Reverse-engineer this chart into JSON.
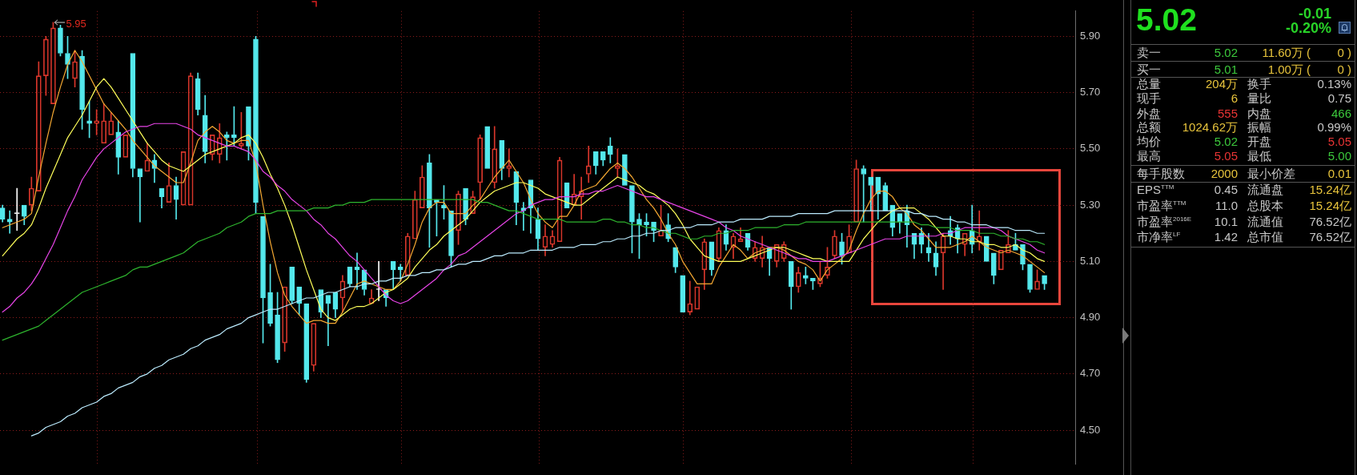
{
  "chart_data": [
    {
      "type": "candlestick",
      "categories": [
        null,
        null,
        null,
        null,
        null,
        null,
        null,
        null,
        null,
        null,
        null,
        null,
        null,
        null,
        null,
        null,
        null,
        null,
        null,
        null,
        null,
        null,
        null,
        null,
        null,
        null,
        null,
        null,
        null,
        null,
        null,
        null,
        null,
        null,
        null,
        null,
        null,
        null,
        null,
        null,
        null,
        null,
        null,
        null,
        null,
        null,
        null,
        null,
        null,
        null,
        null,
        null,
        null,
        null,
        null,
        null,
        null,
        null,
        null,
        null,
        null,
        null,
        null,
        null,
        null,
        null,
        null,
        null,
        null,
        null,
        null,
        null,
        null,
        null,
        null,
        null,
        null,
        null,
        null,
        null,
        null,
        null,
        null,
        null,
        null,
        null,
        null,
        null,
        null,
        null,
        null,
        null,
        null,
        null,
        null,
        null,
        null,
        null,
        null,
        null,
        null,
        null,
        null,
        null,
        null,
        null,
        null,
        null,
        null,
        null,
        null,
        null,
        null,
        null,
        null,
        null,
        null,
        null,
        null,
        null,
        null,
        null,
        null,
        null,
        null,
        null,
        null,
        null,
        null,
        null,
        null,
        null,
        null,
        null,
        null,
        null,
        null,
        null,
        null,
        null,
        null,
        null,
        null,
        null,
        null
      ],
      "ohlc": [
        [
          5.29,
          5.3,
          5.24,
          5.25
        ],
        [
          5.25,
          5.28,
          5.2,
          5.24
        ],
        [
          5.27,
          5.36,
          5.21,
          5.27
        ],
        [
          5.3,
          5.3,
          5.23,
          5.26
        ],
        [
          5.3,
          5.4,
          5.28,
          5.36
        ],
        [
          5.35,
          5.81,
          5.35,
          5.76
        ],
        [
          5.76,
          5.9,
          5.69,
          5.89
        ],
        [
          5.66,
          5.95,
          5.66,
          5.93
        ],
        [
          5.93,
          5.94,
          5.83,
          5.84
        ],
        [
          5.84,
          5.9,
          5.75,
          5.8
        ],
        [
          5.75,
          5.85,
          5.72,
          5.81
        ],
        [
          5.83,
          5.85,
          5.57,
          5.64
        ],
        [
          5.6,
          5.67,
          5.54,
          5.59
        ],
        [
          5.59,
          5.64,
          5.55,
          5.6
        ],
        [
          5.52,
          5.66,
          5.52,
          5.6
        ],
        [
          5.55,
          5.63,
          5.55,
          5.6
        ],
        [
          5.56,
          5.6,
          5.41,
          5.47
        ],
        [
          5.47,
          5.55,
          5.47,
          5.55
        ],
        [
          5.84,
          5.84,
          5.4,
          5.43
        ],
        [
          5.43,
          5.43,
          5.24,
          5.4
        ],
        [
          5.42,
          5.52,
          5.42,
          5.46
        ],
        [
          5.46,
          5.48,
          5.38,
          5.43
        ],
        [
          5.36,
          5.36,
          5.29,
          5.33
        ],
        [
          5.31,
          5.45,
          5.31,
          5.37
        ],
        [
          5.37,
          5.4,
          5.25,
          5.32
        ],
        [
          5.3,
          5.49,
          5.3,
          5.49
        ],
        [
          5.3,
          5.77,
          5.3,
          5.76
        ],
        [
          5.75,
          5.77,
          5.62,
          5.64
        ],
        [
          5.62,
          5.69,
          5.45,
          5.49
        ],
        [
          5.48,
          5.55,
          5.46,
          5.55
        ],
        [
          5.48,
          5.59,
          5.45,
          5.54
        ],
        [
          5.55,
          5.56,
          5.46,
          5.54
        ],
        [
          5.55,
          5.65,
          5.51,
          5.54
        ],
        [
          5.51,
          5.63,
          5.5,
          5.52
        ],
        [
          5.65,
          5.65,
          5.46,
          5.51
        ],
        [
          5.89,
          5.9,
          5.27,
          5.31
        ],
        [
          5.26,
          5.26,
          4.81,
          4.97
        ],
        [
          4.99,
          5.09,
          4.87,
          4.88
        ],
        [
          4.91,
          4.99,
          4.74,
          4.75
        ],
        [
          4.81,
          5.01,
          4.78,
          5.01
        ],
        [
          5.08,
          5.08,
          4.95,
          4.96
        ],
        [
          5.01,
          5.01,
          4.91,
          4.95
        ],
        [
          4.95,
          4.95,
          4.67,
          4.68
        ],
        [
          4.73,
          4.88,
          4.71,
          4.88
        ],
        [
          5.0,
          5.0,
          4.9,
          4.92
        ],
        [
          4.98,
          4.98,
          4.8,
          4.95
        ],
        [
          4.99,
          4.99,
          4.9,
          4.93
        ],
        [
          4.97,
          5.05,
          4.92,
          5.03
        ],
        [
          5.08,
          5.08,
          5.01,
          5.02
        ],
        [
          5.08,
          5.13,
          5.0,
          5.07
        ],
        [
          5.07,
          5.07,
          4.98,
          5.0
        ],
        [
          4.95,
          5.0,
          4.95,
          4.97
        ],
        [
          5.0,
          5.1,
          4.96,
          5.0
        ],
        [
          5.0,
          5.0,
          4.94,
          4.97
        ],
        [
          5.1,
          5.1,
          5.0,
          5.07
        ],
        [
          5.08,
          5.09,
          5.03,
          5.07
        ],
        [
          5.05,
          5.2,
          5.05,
          5.19
        ],
        [
          5.18,
          5.35,
          5.18,
          5.32
        ],
        [
          5.29,
          5.44,
          5.29,
          5.4
        ],
        [
          5.45,
          5.48,
          5.15,
          5.29
        ],
        [
          5.32,
          5.32,
          5.19,
          5.31
        ],
        [
          5.3,
          5.37,
          5.25,
          5.29
        ],
        [
          5.28,
          5.28,
          5.08,
          5.12
        ],
        [
          5.21,
          5.35,
          5.16,
          5.34
        ],
        [
          5.36,
          5.36,
          5.23,
          5.25
        ],
        [
          5.27,
          5.35,
          5.27,
          5.33
        ],
        [
          5.38,
          5.55,
          5.32,
          5.54
        ],
        [
          5.58,
          5.58,
          5.43,
          5.43
        ],
        [
          5.38,
          5.58,
          5.36,
          5.5
        ],
        [
          5.53,
          5.53,
          5.39,
          5.43
        ],
        [
          5.43,
          5.5,
          5.4,
          5.44
        ],
        [
          5.42,
          5.42,
          5.23,
          5.31
        ],
        [
          5.29,
          5.31,
          5.21,
          5.28
        ],
        [
          5.39,
          5.39,
          5.2,
          5.29
        ],
        [
          5.25,
          5.29,
          5.14,
          5.18
        ],
        [
          5.15,
          5.23,
          5.12,
          5.19
        ],
        [
          5.16,
          5.21,
          5.15,
          5.19
        ],
        [
          5.17,
          5.47,
          5.17,
          5.46
        ],
        [
          5.38,
          5.38,
          5.29,
          5.29
        ],
        [
          5.3,
          5.41,
          5.3,
          5.34
        ],
        [
          5.33,
          5.4,
          5.25,
          5.35
        ],
        [
          5.41,
          5.51,
          5.38,
          5.44
        ],
        [
          5.49,
          5.49,
          5.41,
          5.44
        ],
        [
          5.49,
          5.49,
          5.44,
          5.46
        ],
        [
          5.51,
          5.54,
          5.45,
          5.48
        ],
        [
          5.43,
          5.5,
          5.4,
          5.44
        ],
        [
          5.48,
          5.48,
          5.37,
          5.37
        ],
        [
          5.37,
          5.37,
          5.13,
          5.24
        ],
        [
          5.25,
          5.27,
          5.11,
          5.23
        ],
        [
          5.24,
          5.27,
          5.19,
          5.23
        ],
        [
          5.24,
          5.24,
          5.17,
          5.21
        ],
        [
          5.19,
          5.3,
          5.19,
          5.21
        ],
        [
          5.23,
          5.27,
          5.17,
          5.18
        ],
        [
          5.15,
          5.15,
          5.06,
          5.08
        ],
        [
          5.05,
          5.05,
          4.92,
          4.92
        ],
        [
          4.92,
          5.03,
          4.91,
          4.95
        ],
        [
          4.93,
          5.01,
          4.93,
          5.01
        ],
        [
          5.07,
          5.18,
          5.0,
          5.17
        ],
        [
          5.17,
          5.17,
          5.05,
          5.07
        ],
        [
          5.11,
          5.22,
          5.1,
          5.21
        ],
        [
          5.21,
          5.23,
          5.14,
          5.16
        ],
        [
          5.15,
          5.2,
          5.11,
          5.19
        ],
        [
          5.17,
          5.22,
          5.17,
          5.18
        ],
        [
          5.2,
          5.2,
          5.14,
          5.15
        ],
        [
          5.11,
          5.17,
          5.1,
          5.15
        ],
        [
          5.11,
          5.19,
          5.08,
          5.15
        ],
        [
          5.15,
          5.15,
          5.05,
          5.11
        ],
        [
          5.1,
          5.16,
          5.08,
          5.16
        ],
        [
          5.11,
          5.17,
          5.1,
          5.16
        ],
        [
          5.1,
          5.1,
          4.93,
          5.01
        ],
        [
          5.01,
          5.08,
          4.99,
          5.06
        ],
        [
          5.05,
          5.08,
          5.02,
          5.04
        ],
        [
          5.04,
          5.04,
          5.0,
          5.03
        ],
        [
          5.02,
          5.1,
          5.01,
          5.04
        ],
        [
          5.05,
          5.15,
          5.04,
          5.08
        ],
        [
          5.12,
          5.21,
          5.11,
          5.19
        ],
        [
          5.17,
          5.2,
          5.09,
          5.12
        ],
        [
          5.13,
          5.23,
          5.13,
          5.19
        ],
        [
          5.24,
          5.46,
          5.24,
          5.43
        ],
        [
          5.43,
          5.44,
          5.24,
          5.41
        ],
        [
          5.4,
          5.4,
          5.28,
          5.37
        ],
        [
          5.4,
          5.4,
          5.25,
          5.34
        ],
        [
          5.37,
          5.38,
          5.28,
          5.28
        ],
        [
          5.3,
          5.3,
          5.19,
          5.22
        ],
        [
          5.27,
          5.27,
          5.2,
          5.24
        ],
        [
          5.28,
          5.3,
          5.15,
          5.23
        ],
        [
          5.2,
          5.2,
          5.11,
          5.16
        ],
        [
          5.2,
          5.22,
          5.13,
          5.16
        ],
        [
          5.15,
          5.2,
          5.1,
          5.13
        ],
        [
          5.13,
          5.17,
          5.05,
          5.08
        ],
        [
          5.13,
          5.2,
          5.0,
          5.19
        ],
        [
          5.21,
          5.26,
          5.16,
          5.19
        ],
        [
          5.22,
          5.23,
          5.13,
          5.18
        ],
        [
          5.16,
          5.2,
          5.12,
          5.2
        ],
        [
          5.21,
          5.3,
          5.13,
          5.16
        ],
        [
          5.17,
          5.28,
          5.14,
          5.19
        ],
        [
          5.19,
          5.19,
          5.1,
          5.1
        ],
        [
          5.13,
          5.13,
          5.02,
          5.05
        ],
        [
          5.07,
          5.14,
          5.07,
          5.14
        ],
        [
          5.13,
          5.21,
          5.13,
          5.16
        ],
        [
          5.16,
          5.2,
          5.14,
          5.14
        ],
        [
          5.16,
          5.16,
          5.07,
          5.09
        ],
        [
          5.09,
          5.09,
          4.99,
          5.0
        ],
        [
          5.0,
          5.07,
          5.0,
          5.03
        ],
        [
          5.05,
          5.05,
          5.0,
          5.02
        ]
      ],
      "colors": [
        "#54e8ec",
        "#54e8ec",
        "#ffffff",
        "#54e8ec",
        "#d9362b",
        "#d9362b",
        "#d9362b",
        "#d9362b",
        "#54e8ec",
        "#54e8ec",
        "#d9362b",
        "#54e8ec",
        "#54e8ec",
        "#d9362b",
        "#d9362b",
        "#d9362b",
        "#54e8ec",
        "#d9362b",
        "#54e8ec",
        "#54e8ec",
        "#d9362b",
        "#54e8ec",
        "#54e8ec",
        "#d9362b",
        "#54e8ec",
        "#d9362b",
        "#d9362b",
        "#54e8ec",
        "#54e8ec",
        "#d9362b",
        "#d9362b",
        "#54e8ec",
        "#54e8ec",
        "#d9362b",
        "#54e8ec",
        "#54e8ec",
        "#54e8ec",
        "#54e8ec",
        "#54e8ec",
        "#d9362b",
        "#54e8ec",
        "#54e8ec",
        "#54e8ec",
        "#d9362b",
        "#54e8ec",
        "#54e8ec",
        "#54e8ec",
        "#d9362b",
        "#54e8ec",
        "#54e8ec",
        "#54e8ec",
        "#d9362b",
        "#ffffff",
        "#54e8ec",
        "#54e8ec",
        "#54e8ec",
        "#d9362b",
        "#d9362b",
        "#d9362b",
        "#54e8ec",
        "#54e8ec",
        "#54e8ec",
        "#54e8ec",
        "#d9362b",
        "#54e8ec",
        "#d9362b",
        "#d9362b",
        "#54e8ec",
        "#d9362b",
        "#54e8ec",
        "#d9362b",
        "#54e8ec",
        "#54e8ec",
        "#54e8ec",
        "#54e8ec",
        "#d9362b",
        "#d9362b",
        "#d9362b",
        "#54e8ec",
        "#d9362b",
        "#d9362b",
        "#d9362b",
        "#54e8ec",
        "#54e8ec",
        "#54e8ec",
        "#d9362b",
        "#54e8ec",
        "#54e8ec",
        "#54e8ec",
        "#54e8ec",
        "#54e8ec",
        "#d9362b",
        "#54e8ec",
        "#54e8ec",
        "#54e8ec",
        "#d9362b",
        "#d9362b",
        "#d9362b",
        "#54e8ec",
        "#d9362b",
        "#54e8ec",
        "#d9362b",
        "#d9362b",
        "#54e8ec",
        "#d9362b",
        "#d9362b",
        "#54e8ec",
        "#d9362b",
        "#d9362b",
        "#54e8ec",
        "#d9362b",
        "#54e8ec",
        "#54e8ec",
        "#d9362b",
        "#d9362b",
        "#d9362b",
        "#54e8ec",
        "#d9362b",
        "#d9362b",
        "#54e8ec",
        "#54e8ec",
        "#54e8ec",
        "#54e8ec",
        "#54e8ec",
        "#54e8ec",
        "#54e8ec",
        "#54e8ec",
        "#54e8ec",
        "#54e8ec",
        "#54e8ec",
        "#d9362b",
        "#54e8ec",
        "#54e8ec",
        "#d9362b",
        "#54e8ec",
        "#d9362b",
        "#54e8ec",
        "#54e8ec",
        "#d9362b",
        "#d9362b",
        "#54e8ec",
        "#54e8ec",
        "#54e8ec",
        "#d9362b",
        "#54e8ec"
      ],
      "series": [
        {
          "type": "line",
          "color": "#bcecff",
          "values": [
            null,
            null,
            null,
            null,
            4.48,
            4.49,
            4.51,
            4.52,
            4.53,
            4.55,
            4.56,
            4.58,
            4.59,
            4.6,
            4.62,
            4.63,
            4.65,
            4.66,
            4.67,
            4.69,
            4.7,
            4.72,
            4.73,
            4.75,
            4.76,
            4.77,
            4.79,
            4.8,
            4.82,
            4.83,
            4.84,
            4.86,
            4.87,
            4.88,
            4.9,
            4.91,
            4.92,
            4.93,
            4.93,
            4.94,
            4.95,
            4.96,
            4.97,
            4.97,
            4.98,
            4.99,
            4.99,
            5.0,
            5.01,
            5.01,
            5.02,
            5.02,
            5.03,
            5.03,
            5.04,
            5.04,
            5.05,
            5.05,
            5.06,
            5.06,
            5.07,
            5.07,
            5.08,
            5.09,
            5.09,
            5.1,
            5.1,
            5.11,
            5.12,
            5.12,
            5.13,
            5.13,
            5.13,
            5.14,
            5.14,
            5.14,
            5.14,
            5.15,
            5.15,
            5.15,
            5.16,
            5.16,
            5.16,
            5.17,
            5.17,
            5.18,
            5.18,
            5.19,
            5.19,
            5.2,
            5.2,
            5.21,
            5.21,
            5.22,
            5.22,
            5.22,
            5.23,
            5.23,
            5.23,
            5.24,
            5.24,
            5.24,
            5.25,
            5.25,
            5.25,
            5.25,
            5.26,
            5.26,
            5.26,
            5.26,
            5.27,
            5.27,
            5.27,
            5.27,
            5.27,
            5.28,
            5.28,
            5.28,
            5.28,
            5.28,
            5.28,
            5.28,
            5.28,
            5.28,
            5.28,
            5.28,
            5.27,
            5.27,
            5.26,
            5.26,
            5.25,
            5.25,
            5.24,
            5.24,
            5.23,
            5.23,
            5.23,
            5.22,
            5.22,
            5.22,
            5.21,
            5.21,
            5.21,
            5.2,
            5.2
          ]
        },
        {
          "type": "line",
          "color": "#2eb42e",
          "values": [
            4.82,
            4.83,
            4.84,
            4.85,
            4.86,
            4.87,
            4.89,
            4.91,
            4.93,
            4.95,
            4.97,
            4.99,
            5.0,
            5.01,
            5.02,
            5.03,
            5.04,
            5.05,
            5.07,
            5.08,
            5.08,
            5.09,
            5.1,
            5.11,
            5.12,
            5.13,
            5.15,
            5.17,
            5.18,
            5.19,
            5.2,
            5.22,
            5.23,
            5.24,
            5.26,
            5.27,
            5.27,
            5.27,
            5.28,
            5.28,
            5.28,
            5.28,
            5.28,
            5.29,
            5.29,
            5.29,
            5.3,
            5.3,
            5.31,
            5.31,
            5.31,
            5.32,
            5.32,
            5.32,
            5.32,
            5.32,
            5.32,
            5.32,
            5.32,
            5.32,
            5.32,
            5.32,
            5.32,
            5.32,
            5.32,
            5.32,
            5.31,
            5.31,
            5.3,
            5.29,
            5.28,
            5.28,
            5.27,
            5.26,
            5.25,
            5.25,
            5.25,
            5.25,
            5.24,
            5.24,
            5.24,
            5.24,
            5.24,
            5.25,
            5.25,
            5.24,
            5.24,
            5.23,
            5.23,
            5.22,
            5.22,
            5.21,
            5.2,
            5.2,
            5.19,
            5.18,
            5.18,
            5.19,
            5.19,
            5.2,
            5.2,
            5.21,
            5.21,
            5.21,
            5.22,
            5.22,
            5.22,
            5.22,
            5.23,
            5.23,
            5.23,
            5.24,
            5.24,
            5.24,
            5.24,
            5.24,
            5.24,
            5.24,
            5.24,
            5.24,
            5.24,
            5.24,
            5.24,
            5.24,
            5.24,
            5.24,
            5.24,
            5.23,
            5.23,
            5.22,
            5.22,
            5.22,
            5.21,
            5.21,
            5.21,
            5.2,
            5.2,
            5.2,
            5.19,
            5.19,
            5.18,
            5.18,
            5.17,
            5.17,
            5.16
          ]
        },
        {
          "type": "line",
          "color": "#e844e8",
          "values": [
            4.92,
            4.94,
            4.97,
            4.99,
            5.02,
            5.06,
            5.11,
            5.16,
            5.22,
            5.28,
            5.33,
            5.39,
            5.43,
            5.47,
            5.5,
            5.52,
            5.54,
            5.56,
            5.57,
            5.58,
            5.58,
            5.59,
            5.59,
            5.59,
            5.59,
            5.58,
            5.57,
            5.55,
            5.54,
            5.53,
            5.52,
            5.51,
            5.51,
            5.5,
            5.49,
            5.46,
            5.42,
            5.4,
            5.37,
            5.35,
            5.32,
            5.3,
            5.28,
            5.25,
            5.23,
            5.2,
            5.18,
            5.15,
            5.12,
            5.1,
            5.07,
            5.04,
            5.01,
            4.98,
            4.96,
            4.95,
            4.96,
            4.98,
            5.0,
            5.02,
            5.04,
            5.07,
            5.09,
            5.12,
            5.13,
            5.15,
            5.17,
            5.19,
            5.21,
            5.23,
            5.25,
            5.27,
            5.28,
            5.3,
            5.31,
            5.32,
            5.32,
            5.33,
            5.33,
            5.33,
            5.34,
            5.34,
            5.35,
            5.35,
            5.36,
            5.37,
            5.36,
            5.35,
            5.34,
            5.33,
            5.33,
            5.32,
            5.31,
            5.3,
            5.29,
            5.28,
            5.27,
            5.26,
            5.25,
            5.24,
            5.22,
            5.21,
            5.19,
            5.18,
            5.17,
            5.16,
            5.15,
            5.14,
            5.13,
            5.12,
            5.11,
            5.11,
            5.1,
            5.1,
            5.1,
            5.11,
            5.12,
            5.13,
            5.14,
            5.15,
            5.16,
            5.17,
            5.18,
            5.18,
            5.18,
            5.19,
            5.19,
            5.19,
            5.19,
            5.19,
            5.2,
            5.2,
            5.21,
            5.22,
            5.22,
            5.22,
            5.22,
            5.22,
            5.21,
            5.19,
            5.18,
            5.17,
            5.16,
            5.14,
            5.13
          ]
        },
        {
          "type": "line",
          "color": "#ffff5a",
          "values": [
            5.12,
            5.15,
            5.18,
            5.2,
            5.23,
            5.29,
            5.36,
            5.42,
            5.48,
            5.54,
            5.58,
            5.62,
            5.67,
            5.72,
            5.75,
            5.72,
            5.68,
            5.64,
            5.6,
            5.56,
            5.52,
            5.49,
            5.46,
            5.44,
            5.43,
            5.42,
            5.44,
            5.46,
            5.48,
            5.49,
            5.5,
            5.51,
            5.52,
            5.54,
            5.55,
            5.52,
            5.47,
            5.41,
            5.36,
            5.3,
            5.23,
            5.15,
            5.07,
            5.0,
            4.93,
            4.9,
            4.89,
            4.91,
            4.93,
            4.94,
            4.94,
            4.95,
            4.97,
            4.99,
            5.0,
            5.02,
            5.04,
            5.08,
            5.11,
            5.14,
            5.16,
            5.19,
            5.21,
            5.23,
            5.25,
            5.28,
            5.31,
            5.33,
            5.35,
            5.36,
            5.37,
            5.38,
            5.38,
            5.37,
            5.36,
            5.34,
            5.33,
            5.32,
            5.31,
            5.3,
            5.3,
            5.32,
            5.34,
            5.36,
            5.38,
            5.4,
            5.39,
            5.38,
            5.37,
            5.35,
            5.34,
            5.32,
            5.3,
            5.27,
            5.23,
            5.18,
            5.15,
            5.12,
            5.11,
            5.1,
            5.1,
            5.1,
            5.1,
            5.11,
            5.12,
            5.13,
            5.14,
            5.15,
            5.15,
            5.14,
            5.13,
            5.12,
            5.11,
            5.11,
            5.1,
            5.1,
            5.1,
            5.1,
            5.14,
            5.18,
            5.21,
            5.24,
            5.26,
            5.28,
            5.29,
            5.29,
            5.29,
            5.27,
            5.25,
            5.22,
            5.19,
            5.19,
            5.18,
            5.18,
            5.17,
            5.17,
            5.16,
            5.16,
            5.15,
            5.15,
            5.16,
            5.14,
            5.13,
            5.11,
            5.1
          ]
        },
        {
          "type": "line",
          "color": "#f5a832",
          "values": [
            5.22,
            5.23,
            5.24,
            5.25,
            5.27,
            5.4,
            5.52,
            5.63,
            5.72,
            5.8,
            5.85,
            5.81,
            5.76,
            5.71,
            5.66,
            5.63,
            5.6,
            5.57,
            5.53,
            5.5,
            5.47,
            5.44,
            5.42,
            5.4,
            5.38,
            5.38,
            5.45,
            5.53,
            5.56,
            5.58,
            5.56,
            5.53,
            5.52,
            5.53,
            5.53,
            5.45,
            5.3,
            5.17,
            5.06,
            4.98,
            4.94,
            4.91,
            4.88,
            4.89,
            4.89,
            4.88,
            4.88,
            4.92,
            4.97,
            5.02,
            5.03,
            5.02,
            5.01,
            5.0,
            5.0,
            5.03,
            5.09,
            5.16,
            5.24,
            5.29,
            5.31,
            5.31,
            5.27,
            5.27,
            5.27,
            5.3,
            5.32,
            5.36,
            5.4,
            5.43,
            5.46,
            5.42,
            5.38,
            5.32,
            5.27,
            5.24,
            5.22,
            5.26,
            5.26,
            5.3,
            5.35,
            5.36,
            5.37,
            5.4,
            5.43,
            5.45,
            5.43,
            5.4,
            5.36,
            5.32,
            5.29,
            5.25,
            5.2,
            5.16,
            5.1,
            5.06,
            5.02,
            5.02,
            5.02,
            5.08,
            5.12,
            5.16,
            5.14,
            5.11,
            5.13,
            5.14,
            5.15,
            5.15,
            5.14,
            5.12,
            5.1,
            5.09,
            5.07,
            5.03,
            5.07,
            5.09,
            5.11,
            5.14,
            5.21,
            5.27,
            5.32,
            5.35,
            5.35,
            5.33,
            5.29,
            5.27,
            5.23,
            5.21,
            5.18,
            5.15,
            5.15,
            5.15,
            5.16,
            5.17,
            5.19,
            5.17,
            5.15,
            5.14,
            5.13,
            5.14,
            5.13,
            5.12,
            5.1,
            5.08,
            5.06
          ]
        }
      ],
      "ylim": [
        4.38,
        5.99
      ],
      "yticks": [
        {
          "value": 4.5,
          "label": "4.50"
        },
        {
          "value": 4.7,
          "label": "4.70"
        },
        {
          "value": 4.9,
          "label": "4.90"
        },
        {
          "value": 5.1,
          "label": "5.10"
        },
        {
          "value": 5.3,
          "label": "5.30"
        },
        {
          "value": 5.5,
          "label": "5.50"
        },
        {
          "value": 5.7,
          "label": "5.70"
        },
        {
          "value": 5.9,
          "label": "5.90"
        }
      ],
      "tick_labels": "y",
      "grid": "y",
      "marker": "none",
      "line_style": "solid",
      "annotations": [
        "5.95"
      ]
    },
    {
      "type": "other",
      "title": "5.02",
      "color": "#1fe01f",
      "annotations": [
        "-0.01",
        "-0.20%",
        "卖一",
        "5.02",
        "11.60万 (",
        "0 )",
        "买一",
        "5.01",
        "1.00万 (",
        "0 )",
        "总量",
        "204万",
        "换手",
        "0.13%",
        "现手",
        "6",
        "量比",
        "0.75",
        "外盘",
        "555",
        "内盘",
        "466",
        "总额",
        "1024.62万",
        "振幅",
        "0.99%",
        "均价",
        "5.02",
        "开盘",
        "5.05",
        "最高",
        "5.05",
        "最低",
        "5.00",
        "每手股数",
        "2000",
        "最小价差",
        "0.01",
        "EPS$^{TTM}$",
        "0.45",
        "流通盘",
        "15.24亿",
        "市盈率$^{TTM}$",
        "11.0",
        "总股本",
        "15.24亿",
        "市盈率$^{2016E}$",
        "10.1",
        "流通值",
        "76.52亿",
        "市净率$^{LF}$",
        "1.42",
        "总市值",
        "76.52亿"
      ],
      "colors": [
        "#28d428",
        "#28d428",
        "#c8c8c8",
        "#3cc83c",
        "#e8c43c",
        "#e8c43c",
        "#c8c8c8",
        "#3cc83c",
        "#e8c43c",
        "#e8c43c",
        "#c8c8c8",
        "#e8c43c",
        "#c8c8c8",
        "#c8c8c8",
        "#c8c8c8",
        "#e8c43c",
        "#c8c8c8",
        "#c8c8c8",
        "#c8c8c8",
        "#e83434",
        "#c8c8c8",
        "#3cc83c",
        "#c8c8c8",
        "#e8c43c",
        "#c8c8c8",
        "#c8c8c8",
        "#c8c8c8",
        "#3cc83c",
        "#c8c8c8",
        "#e83434",
        "#c8c8c8",
        "#e83434",
        "#c8c8c8",
        "#3cc83c",
        "#c8c8c8",
        "#e8c43c",
        "#c8c8c8",
        "#e8c43c",
        "#c8c8c8",
        "#c8c8c8",
        "#c8c8c8",
        "#e8c43c",
        "#c8c8c8",
        "#c8c8c8",
        "#c8c8c8",
        "#e8c43c",
        "#c8c8c8",
        "#c8c8c8",
        "#c8c8c8",
        "#c8c8c8",
        "#c8c8c8",
        "#c8c8c8",
        "#c8c8c8",
        "#c8c8c8"
      ]
    }
  ]
}
